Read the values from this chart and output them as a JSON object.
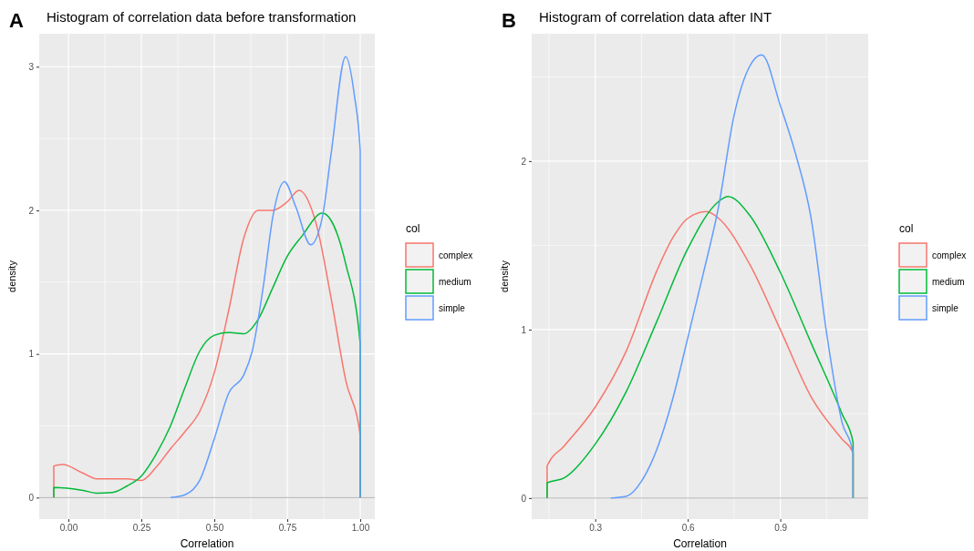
{
  "chart_data": [
    {
      "type": "line",
      "title": "Histogram of correlation data before transformation",
      "xlabel": "Correlation",
      "ylabel": "density",
      "legend_title": "col",
      "legend": "right",
      "grid": true,
      "annotations": [
        "A"
      ],
      "xlim": [
        -0.1,
        1.05
      ],
      "ylim": [
        -0.15,
        3.23
      ],
      "xticks": [
        {
          "value": 0,
          "label": "0.00"
        },
        {
          "value": 0.25,
          "label": "0.25"
        },
        {
          "value": 0.5,
          "label": "0.50"
        },
        {
          "value": 0.75,
          "label": "0.75"
        },
        {
          "value": 1,
          "label": "1.00"
        }
      ],
      "yticks": [
        0,
        1,
        2,
        3
      ],
      "ref_lines": [
        {
          "axis": "y",
          "value": 0,
          "label": null,
          "color": "#bebebe"
        }
      ],
      "series": [
        {
          "name": "complex",
          "color": "#f8766d",
          "x": [
            -0.05,
            -0.05,
            -0.02,
            0.05,
            0.1,
            0.15,
            0.2,
            0.25,
            0.3,
            0.35,
            0.4,
            0.45,
            0.5,
            0.55,
            0.6,
            0.65,
            0.7,
            0.75,
            0.79,
            0.85,
            0.9,
            0.95,
            1.0,
            1.0
          ],
          "values": [
            0,
            0.22,
            0.23,
            0.17,
            0.13,
            0.13,
            0.13,
            0.12,
            0.21,
            0.34,
            0.46,
            0.6,
            0.87,
            1.31,
            1.8,
            2.0,
            2.0,
            2.06,
            2.14,
            1.9,
            1.39,
            0.82,
            0.43,
            0
          ]
        },
        {
          "name": "medium",
          "color": "#00ba38",
          "x": [
            -0.05,
            -0.05,
            0.05,
            0.1,
            0.15,
            0.2,
            0.25,
            0.3,
            0.35,
            0.4,
            0.45,
            0.5,
            0.55,
            0.6,
            0.65,
            0.7,
            0.75,
            0.8,
            0.87,
            0.9,
            0.95,
            1.0,
            1.0
          ],
          "values": [
            0,
            0.07,
            0.05,
            0.03,
            0.035,
            0.08,
            0.15,
            0.3,
            0.5,
            0.77,
            1.02,
            1.13,
            1.15,
            1.14,
            1.24,
            1.46,
            1.68,
            1.82,
            1.98,
            1.93,
            1.63,
            1.07,
            0
          ]
        },
        {
          "name": "simple",
          "color": "#619cff",
          "x": [
            0.35,
            0.4,
            0.45,
            0.5,
            0.55,
            0.6,
            0.63,
            0.67,
            0.7,
            0.74,
            0.78,
            0.83,
            0.87,
            0.9,
            0.95,
            0.98,
            1.0,
            1.0
          ],
          "values": [
            0,
            0.02,
            0.12,
            0.41,
            0.73,
            0.85,
            1.02,
            1.5,
            1.95,
            2.2,
            2.02,
            1.76,
            1.95,
            2.39,
            3.07,
            2.8,
            2.41,
            0
          ]
        }
      ]
    },
    {
      "type": "line",
      "title": "Histogram of correlation data after INT",
      "xlabel": "Correlation",
      "ylabel": "density",
      "legend_title": "col",
      "legend": "right",
      "grid": true,
      "annotations": [
        "B"
      ],
      "xlim": [
        0.094,
        1.185
      ],
      "ylim": [
        -0.125,
        2.756
      ],
      "xticks": [
        0.3,
        0.6,
        0.9
      ],
      "yticks": [
        0,
        1,
        2
      ],
      "ref_lines": [
        {
          "axis": "y",
          "value": 0,
          "label": null,
          "color": "#bebebe"
        }
      ],
      "series": [
        {
          "name": "complex",
          "color": "#f8766d",
          "x": [
            0.144,
            0.144,
            0.2,
            0.3,
            0.4,
            0.5,
            0.55,
            0.6,
            0.66,
            0.7,
            0.8,
            0.9,
            1.0,
            1.1,
            1.136,
            1.136
          ],
          "values": [
            0,
            0.19,
            0.31,
            0.54,
            0.87,
            1.35,
            1.54,
            1.66,
            1.7,
            1.66,
            1.39,
            1.0,
            0.6,
            0.35,
            0.27,
            0
          ]
        },
        {
          "name": "medium",
          "color": "#00ba38",
          "x": [
            0.144,
            0.144,
            0.2,
            0.3,
            0.4,
            0.5,
            0.6,
            0.7,
            0.73,
            0.8,
            0.9,
            1.0,
            1.1,
            1.136,
            1.136
          ],
          "values": [
            0,
            0.09,
            0.12,
            0.32,
            0.63,
            1.05,
            1.48,
            1.76,
            1.79,
            1.68,
            1.34,
            0.92,
            0.5,
            0.33,
            0
          ]
        },
        {
          "name": "simple",
          "color": "#619cff",
          "x": [
            0.35,
            0.4,
            0.45,
            0.5,
            0.55,
            0.6,
            0.65,
            0.7,
            0.75,
            0.8,
            0.84,
            0.9,
            0.95,
            1.0,
            1.05,
            1.1,
            1.136,
            1.136
          ],
          "values": [
            0,
            0.01,
            0.1,
            0.29,
            0.58,
            0.95,
            1.33,
            1.73,
            2.27,
            2.56,
            2.63,
            2.33,
            2.04,
            1.66,
            0.98,
            0.45,
            0.27,
            0
          ]
        }
      ]
    }
  ]
}
